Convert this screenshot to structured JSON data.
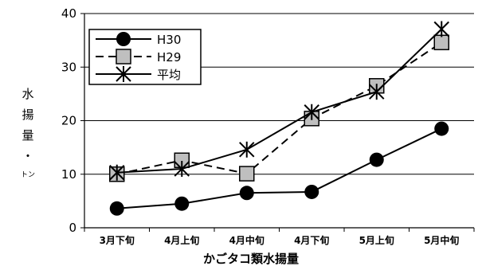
{
  "chart_data": {
    "type": "line",
    "categories": [
      "3月下旬",
      "4月上旬",
      "4月中旬",
      "4月下旬",
      "5月上旬",
      "5月中旬"
    ],
    "series": [
      {
        "name": "H30",
        "values": [
          3.6,
          4.5,
          6.5,
          6.7,
          12.7,
          18.5
        ],
        "marker": "circle",
        "dash": "solid"
      },
      {
        "name": "H29",
        "values": [
          10.0,
          12.6,
          10.1,
          20.4,
          26.5,
          34.6
        ],
        "marker": "square",
        "dash": "dashed"
      },
      {
        "name": "平均",
        "values": [
          10.3,
          11.0,
          14.6,
          21.6,
          25.4,
          37.1
        ],
        "marker": "asterisk",
        "dash": "solid"
      }
    ],
    "xlabel": "かごタコ類水揚量",
    "ylabel": [
      "水",
      "揚",
      "量",
      "・",
      "トン"
    ],
    "ylim": [
      0,
      40
    ],
    "yticks": [
      0,
      10,
      20,
      30,
      40
    ],
    "grid": true,
    "legend": "top-left",
    "colors": {
      "line": "#000000",
      "square_fill": "#bfbfbf",
      "grid": "#000000"
    }
  }
}
